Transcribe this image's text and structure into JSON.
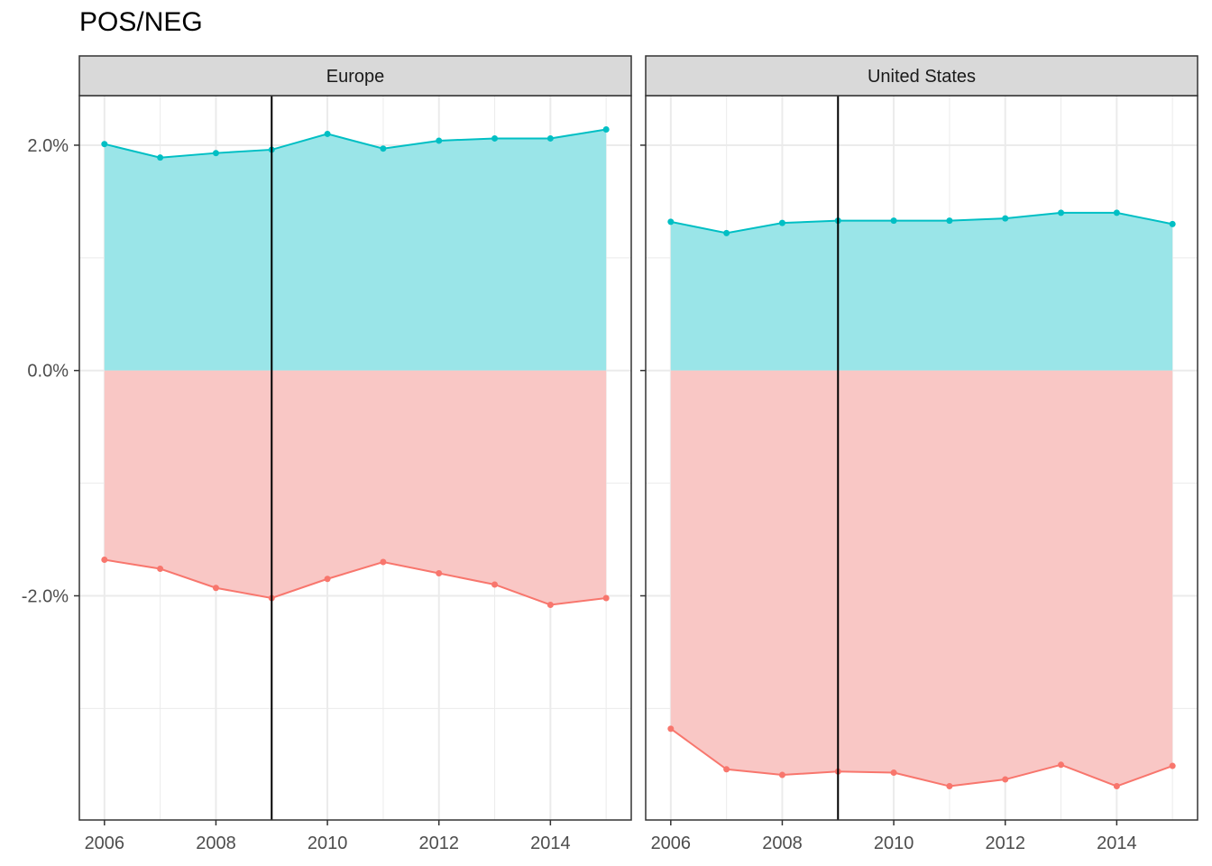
{
  "chart_data": {
    "type": "area",
    "title": "POS/NEG",
    "xlabel": "",
    "ylabel": "",
    "x": [
      2006,
      2007,
      2008,
      2009,
      2010,
      2011,
      2012,
      2013,
      2014,
      2015
    ],
    "x_ticks": [
      2006,
      2008,
      2010,
      2012,
      2014
    ],
    "x_tick_labels": [
      "2006",
      "2008",
      "2010",
      "2012",
      "2014"
    ],
    "xlim": [
      2005.55,
      2015.45
    ],
    "y_ticks": [
      0.02,
      0.0,
      -0.02
    ],
    "y_tick_labels": [
      "2.0%",
      "0.0%",
      "-2.0%"
    ],
    "ylim": [
      -0.0399,
      0.0244
    ],
    "grid": true,
    "vline_x": 2009,
    "colors": {
      "pos": "#00BFC4",
      "neg": "#F8766D",
      "pos_fill": "#9AE5E8",
      "neg_fill": "#F9C7C5",
      "strip": "#d9d9d9",
      "grid": "#ebebeb"
    },
    "panels": [
      {
        "name": "Europe",
        "series": [
          {
            "key": "pos",
            "values": [
              0.0201,
              0.0189,
              0.0193,
              0.0196,
              0.021,
              0.0197,
              0.0204,
              0.0206,
              0.0206,
              0.0214
            ]
          },
          {
            "key": "neg",
            "values": [
              -0.0168,
              -0.0176,
              -0.0193,
              -0.0202,
              -0.0185,
              -0.017,
              -0.018,
              -0.019,
              -0.0208,
              -0.0202
            ]
          }
        ]
      },
      {
        "name": "United States",
        "series": [
          {
            "key": "pos",
            "values": [
              0.0132,
              0.0122,
              0.0131,
              0.0133,
              0.0133,
              0.0133,
              0.0135,
              0.014,
              0.014,
              0.013
            ]
          },
          {
            "key": "neg",
            "values": [
              -0.0318,
              -0.0354,
              -0.0359,
              -0.0356,
              -0.0357,
              -0.0369,
              -0.0363,
              -0.035,
              -0.0369,
              -0.0351
            ]
          }
        ]
      }
    ]
  }
}
